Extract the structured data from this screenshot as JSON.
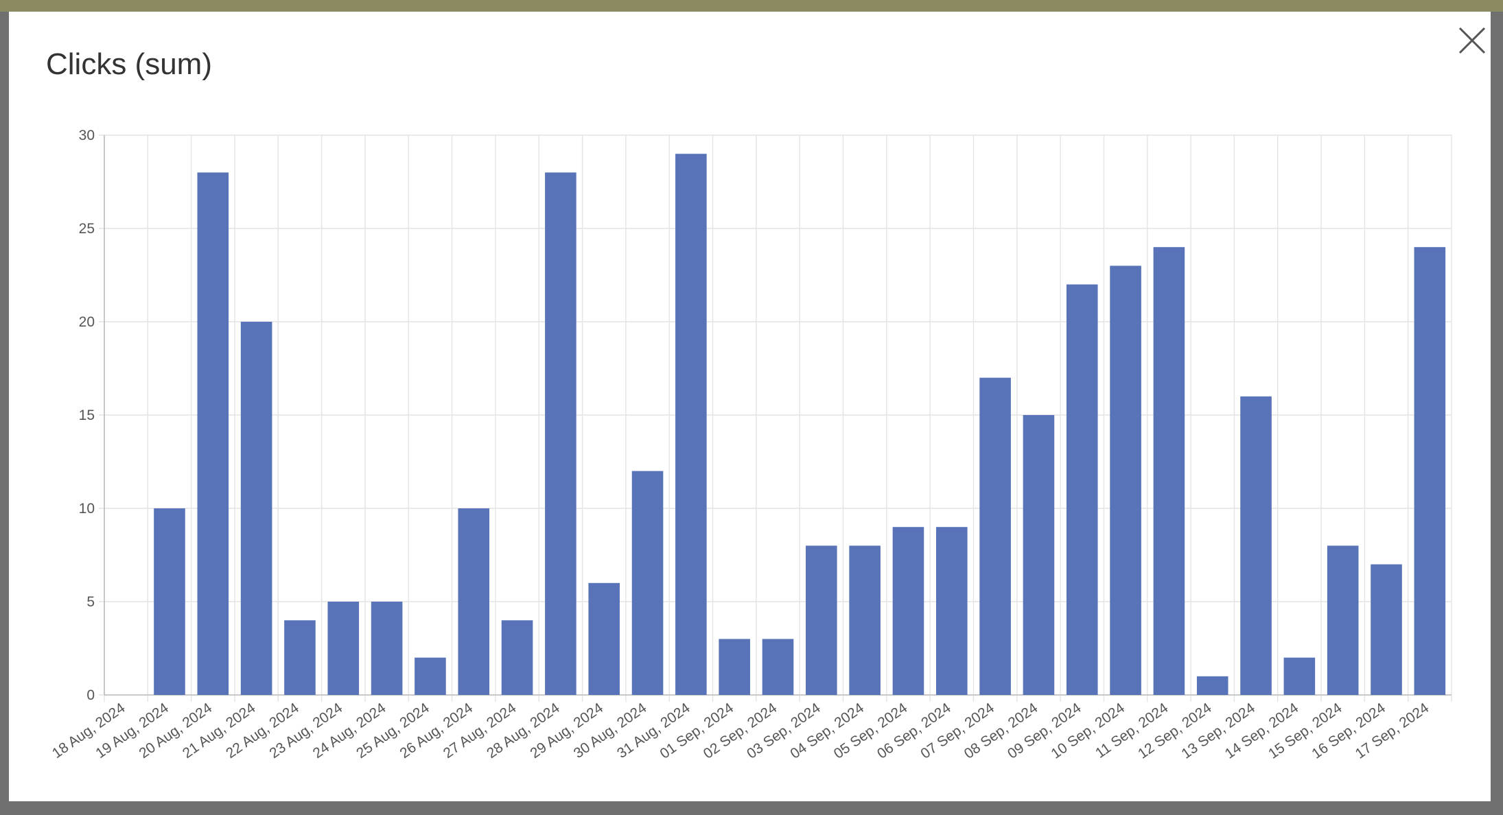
{
  "chart_data": {
    "type": "bar",
    "title": "Clicks (sum)",
    "categories": [
      "18 Aug, 2024",
      "19 Aug, 2024",
      "20 Aug, 2024",
      "21 Aug, 2024",
      "22 Aug, 2024",
      "23 Aug, 2024",
      "24 Aug, 2024",
      "25 Aug, 2024",
      "26 Aug, 2024",
      "27 Aug, 2024",
      "28 Aug, 2024",
      "29 Aug, 2024",
      "30 Aug, 2024",
      "31 Aug, 2024",
      "01 Sep, 2024",
      "02 Sep, 2024",
      "03 Sep, 2024",
      "04 Sep, 2024",
      "05 Sep, 2024",
      "06 Sep, 2024",
      "07 Sep, 2024",
      "08 Sep, 2024",
      "09 Sep, 2024",
      "10 Sep, 2024",
      "11 Sep, 2024",
      "12 Sep, 2024",
      "13 Sep, 2024",
      "14 Sep, 2024",
      "15 Sep, 2024",
      "16 Sep, 2024",
      "17 Sep, 2024"
    ],
    "values": [
      0,
      10,
      28,
      20,
      4,
      5,
      5,
      2,
      10,
      4,
      28,
      6,
      12,
      29,
      3,
      3,
      8,
      8,
      9,
      9,
      17,
      15,
      22,
      23,
      24,
      1,
      16,
      2,
      8,
      7,
      24
    ],
    "color": "#5873b8",
    "ylim": [
      0,
      30
    ],
    "yticks": [
      0,
      5,
      10,
      15,
      20,
      25,
      30
    ],
    "grid": true
  }
}
